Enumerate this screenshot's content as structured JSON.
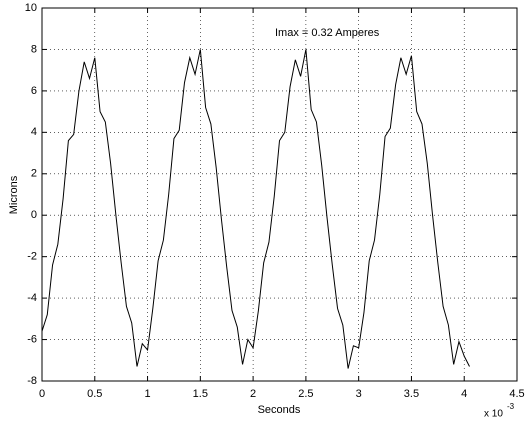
{
  "chart_data": {
    "type": "line",
    "xlabel": "Seconds",
    "ylabel": "Microns",
    "annotation": "Imax = 0.32 Amperes",
    "x_multiplier": "x 10",
    "x_multiplier_exponent": "-3",
    "x": [
      0,
      0.05,
      0.1,
      0.15,
      0.2,
      0.25,
      0.3,
      0.35,
      0.4,
      0.45,
      0.5,
      0.55,
      0.6,
      0.65,
      0.7,
      0.75,
      0.8,
      0.85,
      0.9,
      0.95,
      1,
      1.05,
      1.1,
      1.15,
      1.2,
      1.25,
      1.3,
      1.35,
      1.4,
      1.45,
      1.5,
      1.55,
      1.6,
      1.65,
      1.7,
      1.75,
      1.8,
      1.85,
      1.9,
      1.95,
      2,
      2.05,
      2.1,
      2.15,
      2.2,
      2.25,
      2.3,
      2.35,
      2.4,
      2.45,
      2.5,
      2.55,
      2.6,
      2.65,
      2.7,
      2.75,
      2.8,
      2.85,
      2.9,
      2.95,
      3,
      3.05,
      3.1,
      3.15,
      3.2,
      3.25,
      3.3,
      3.35,
      3.4,
      3.45,
      3.5,
      3.55,
      3.6,
      3.65,
      3.7,
      3.75,
      3.8,
      3.85,
      3.9,
      3.95,
      4,
      4.05
    ],
    "values": [
      -5.6,
      -4.8,
      -2.4,
      -1.4,
      0.8,
      3.6,
      3.9,
      6.0,
      7.4,
      6.6,
      7.6,
      5.0,
      4.5,
      2.5,
      0.0,
      -2.3,
      -4.4,
      -5.2,
      -7.3,
      -6.2,
      -6.5,
      -4.5,
      -2.2,
      -1.2,
      1.0,
      3.7,
      4.1,
      6.4,
      7.6,
      6.8,
      8.0,
      5.2,
      4.4,
      2.3,
      -0.2,
      -2.5,
      -4.6,
      -5.4,
      -7.2,
      -6.0,
      -6.4,
      -4.6,
      -2.3,
      -1.3,
      0.9,
      3.6,
      4.0,
      6.2,
      7.5,
      6.7,
      8.0,
      5.1,
      4.5,
      2.4,
      -0.1,
      -2.4,
      -4.5,
      -5.3,
      -7.4,
      -6.3,
      -6.4,
      -4.7,
      -2.2,
      -1.2,
      1.0,
      3.8,
      4.2,
      6.3,
      7.6,
      6.8,
      7.7,
      5.0,
      4.4,
      2.5,
      0.0,
      -2.3,
      -4.4,
      -5.3,
      -7.2,
      -6.1,
      -6.8,
      -7.3
    ],
    "color": "#000000",
    "xlim": [
      0,
      4.5
    ],
    "xticks": [
      0,
      0.5,
      1,
      1.5,
      2,
      2.5,
      3,
      3.5,
      4,
      4.5
    ],
    "ylim": [
      -8,
      10
    ],
    "yticks": [
      -8,
      -6,
      -4,
      -2,
      0,
      2,
      4,
      6,
      8,
      10
    ],
    "grid": true
  }
}
